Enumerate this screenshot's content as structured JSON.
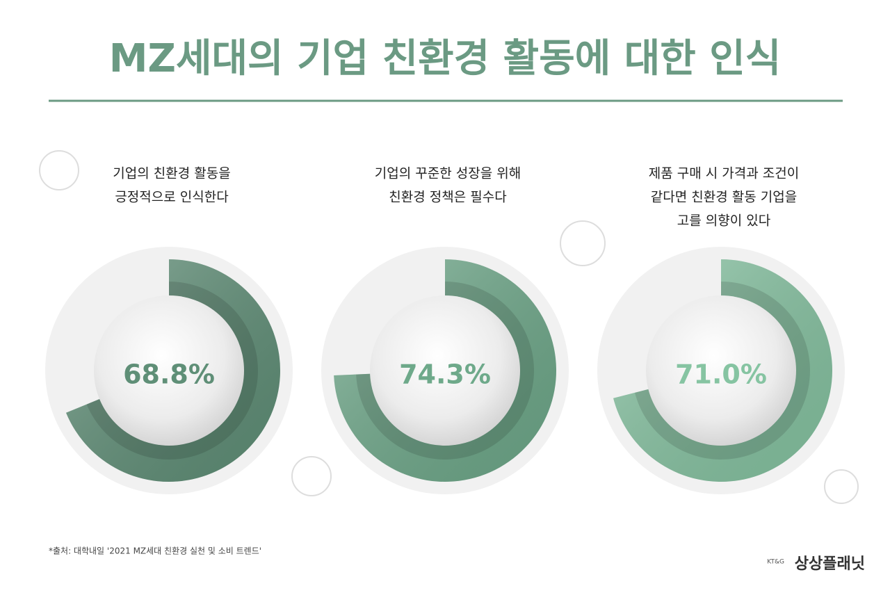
{
  "title": "MZ세대의 기업 친환경 활동에 대한 인식",
  "source": "*출처: 대학내일 '2021 MZ세대 친환경 실천 및 소비 트렌드'",
  "logo": {
    "brand": "KT&G",
    "name": "상상플래닛"
  },
  "chart_data": [
    {
      "type": "donut",
      "title": [
        "기업의 친환경 활동을",
        "긍정적으로 인식한다"
      ],
      "values": [
        68.8
      ],
      "value_labels": [
        "68.8%"
      ],
      "color": "#5f8f77"
    },
    {
      "type": "donut",
      "title": [
        "기업의 꾸준한 성장을 위해",
        "친환경 정책은 필수다"
      ],
      "values": [
        74.3
      ],
      "value_labels": [
        "74.3%"
      ],
      "color": "#6ea98a"
    },
    {
      "type": "donut",
      "title": [
        "제품 구매 시 가격과 조건이",
        "같다면 친환경 활동 기업을",
        "고를 의향이 있다"
      ],
      "values": [
        71.0
      ],
      "value_labels": [
        "71.0%"
      ],
      "color": "#86c4a2"
    }
  ]
}
